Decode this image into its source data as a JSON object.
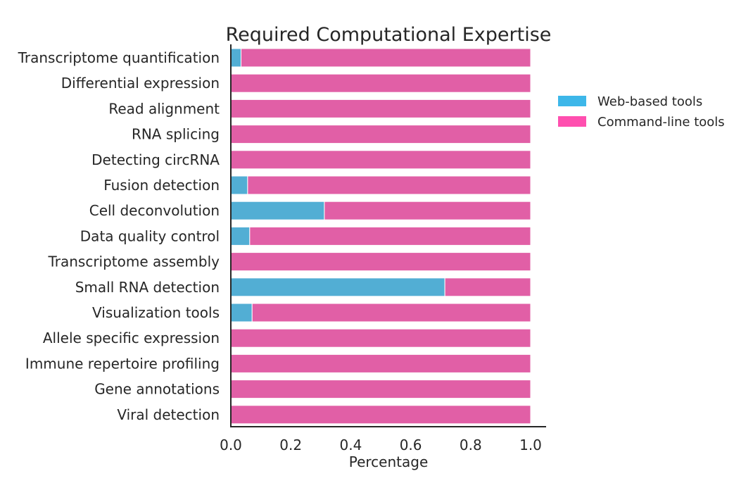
{
  "chart_data": {
    "type": "bar",
    "orientation": "horizontal",
    "stacked": true,
    "title": "Required Computational Expertise",
    "xlabel": "Percentage",
    "ylabel": "",
    "xlim": [
      0,
      1.0
    ],
    "xticks": [
      "0.0",
      "0.2",
      "0.4",
      "0.6",
      "0.8",
      "1.0"
    ],
    "categories": [
      "Transcriptome quantification",
      "Differential expression",
      "Read alignment",
      "RNA splicing",
      "Detecting circRNA",
      "Fusion detection",
      "Cell deconvolution",
      "Data quality control",
      "Transcriptome assembly",
      "Small RNA detection",
      "Visualization tools",
      "Allele specific expression",
      "Immune repertoire profiling",
      "Gene annotations",
      "Viral detection"
    ],
    "series": [
      {
        "name": "Web-based tools",
        "color": "#52aed4",
        "values": [
          0.034,
          0,
          0,
          0,
          0,
          0.056,
          0.312,
          0.063,
          0,
          0.714,
          0.071,
          0,
          0,
          0,
          0
        ]
      },
      {
        "name": "Command-line tools",
        "color": "#e15fa6",
        "values": [
          0.966,
          1.0,
          1.0,
          1.0,
          1.0,
          0.944,
          0.688,
          0.937,
          1.0,
          0.286,
          0.929,
          1.0,
          1.0,
          1.0,
          1.0
        ]
      }
    ],
    "legend": {
      "placement": "right",
      "entries": [
        {
          "label": "Web-based tools",
          "color": "#3db7e9"
        },
        {
          "label": "Command-line tools",
          "color": "#ff4faf"
        }
      ]
    },
    "grid": false
  }
}
